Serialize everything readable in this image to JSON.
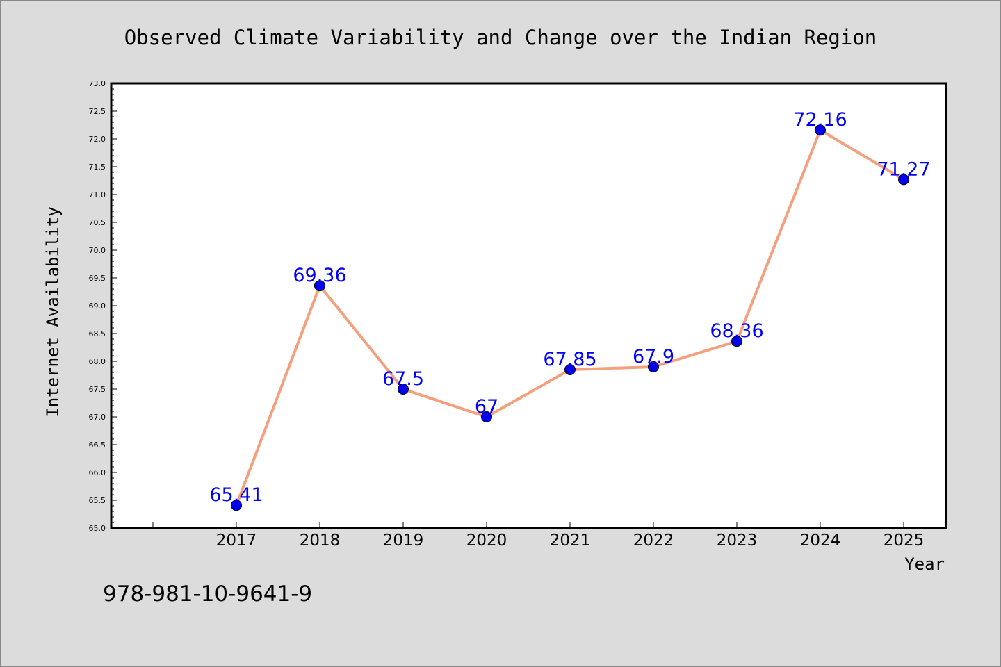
{
  "chart_data": {
    "type": "line",
    "title": "Observed Climate Variability and Change over the Indian Region",
    "xlabel": "Year",
    "ylabel": "Internet Availability",
    "categories": [
      "2017",
      "2018",
      "2019",
      "2020",
      "2021",
      "2022",
      "2023",
      "2024",
      "2025"
    ],
    "series": [
      {
        "values": [
          65.41,
          69.36,
          67.5,
          67,
          67.85,
          67.9,
          68.36,
          72.16,
          71.27
        ],
        "labels": [
          "65.41",
          "69.36",
          "67.5",
          "67",
          "67.85",
          "67.9",
          "68.36",
          "72.16",
          "71.27"
        ],
        "line_color": "#f4a07e",
        "marker_color": "#0000ee"
      }
    ],
    "ylim": [
      65.0,
      73.0
    ],
    "yticks": [
      "65.0",
      "65.5",
      "66.0",
      "66.5",
      "67.0",
      "67.5",
      "68.0",
      "68.5",
      "69.0",
      "69.5",
      "70.0",
      "70.5",
      "71.0",
      "71.5",
      "72.0",
      "72.5",
      "73.0"
    ],
    "grid": false,
    "legend": "none",
    "colors": {
      "background": "#dcdcdc",
      "plot_background": "#ffffff",
      "label_color": "#0000ff"
    }
  },
  "footer_text": "978-981-10-9641-9"
}
